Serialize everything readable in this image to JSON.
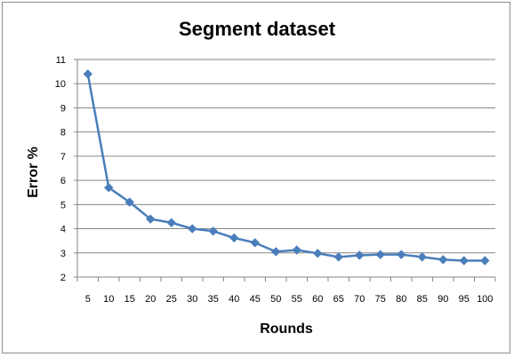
{
  "chart_data": {
    "type": "line",
    "title": "Segment dataset",
    "xlabel": "Rounds",
    "ylabel": "Error %",
    "categories": [
      "5",
      "10",
      "15",
      "20",
      "25",
      "30",
      "35",
      "40",
      "45",
      "50",
      "55",
      "60",
      "65",
      "70",
      "75",
      "80",
      "85",
      "90",
      "95",
      "100"
    ],
    "series": [
      {
        "values": [
          10.4,
          5.7,
          5.1,
          4.4,
          4.25,
          4.0,
          3.9,
          3.62,
          3.42,
          3.05,
          3.12,
          2.98,
          2.83,
          2.9,
          2.93,
          2.93,
          2.83,
          2.72,
          2.68,
          2.68
        ]
      }
    ],
    "ylim": [
      2,
      11
    ],
    "yticks": [
      "2",
      "3",
      "4",
      "5",
      "6",
      "7",
      "8",
      "9",
      "10",
      "11"
    ],
    "grid": true,
    "legend": "none",
    "colors": {
      "line": "#4a7ebb",
      "grid": "#868686",
      "axis": "#868686"
    }
  }
}
